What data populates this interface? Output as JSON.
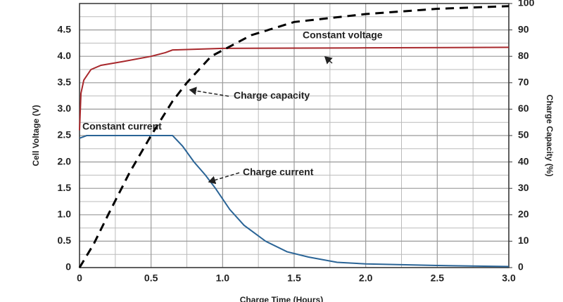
{
  "chart_data": {
    "type": "line",
    "xlabel": "Charge Time (Hours)",
    "ylabel": "Cell Voltage (V)",
    "y2label": "Charge Capacity (%)",
    "xlim": [
      0,
      3
    ],
    "ylim": [
      0,
      5
    ],
    "y2lim": [
      0,
      100
    ],
    "xticks": [
      0,
      0.5,
      {
        "value": 1,
        "label": "1.0"
      },
      1.5,
      {
        "value": 2,
        "label": "2.0"
      },
      2.5,
      {
        "value": 3,
        "label": "3.0"
      }
    ],
    "yticks": [
      0,
      0.5,
      {
        "value": 1,
        "label": "1.0"
      },
      1.5,
      {
        "value": 2,
        "label": "2.0"
      },
      2.5,
      {
        "value": 3,
        "label": "3.0"
      },
      3.5,
      {
        "value": 4,
        "label": "4.0"
      },
      4.5
    ],
    "y2ticks": [
      0,
      10,
      20,
      30,
      40,
      50,
      60,
      70,
      80,
      90,
      100
    ],
    "xminor": [
      0.25,
      0.75,
      1.25,
      1.75,
      2.25,
      2.75
    ],
    "yminor": [
      0.25,
      0.75,
      1.25,
      1.75,
      2.25,
      2.75,
      3.25,
      3.75,
      4.25,
      4.75
    ],
    "grid": true,
    "series": [
      {
        "name": "Constant voltage",
        "color": "#a8282c",
        "dash": false,
        "x": [
          0,
          0.01,
          0.03,
          0.08,
          0.15,
          0.3,
          0.5,
          0.6,
          0.65,
          1.0,
          2.0,
          3.0
        ],
        "values": [
          2.6,
          3.3,
          3.55,
          3.75,
          3.83,
          3.9,
          4.0,
          4.07,
          4.12,
          4.15,
          4.16,
          4.17
        ]
      },
      {
        "name": "Charge current",
        "color": "#2a6496",
        "dash": false,
        "x": [
          0,
          0.05,
          0.65,
          0.72,
          0.8,
          0.88,
          0.95,
          1.05,
          1.15,
          1.3,
          1.45,
          1.6,
          1.8,
          2.0,
          2.5,
          3.0
        ],
        "values": [
          2.45,
          2.5,
          2.5,
          2.3,
          2.0,
          1.75,
          1.5,
          1.1,
          0.8,
          0.5,
          0.3,
          0.2,
          0.1,
          0.07,
          0.04,
          0.02
        ]
      },
      {
        "name": "Charge capacity",
        "color": "#000000",
        "dash": true,
        "axis": "y2",
        "x": [
          0,
          0.1,
          0.2,
          0.35,
          0.5,
          0.65,
          0.75,
          0.92,
          1.2,
          1.5,
          2.0,
          2.5,
          3.0
        ],
        "values": [
          0,
          9,
          20,
          36,
          50,
          63,
          70,
          80,
          88,
          93,
          96,
          98,
          99
        ]
      }
    ],
    "annotations": [
      {
        "text": "Constant voltage",
        "color": "#a8282c"
      },
      {
        "text": "Charge capacity",
        "color": "#000000"
      },
      {
        "text": "Charge current",
        "color": "#2a6496"
      },
      {
        "text": "Constant current",
        "color": "#2a6496"
      }
    ]
  }
}
